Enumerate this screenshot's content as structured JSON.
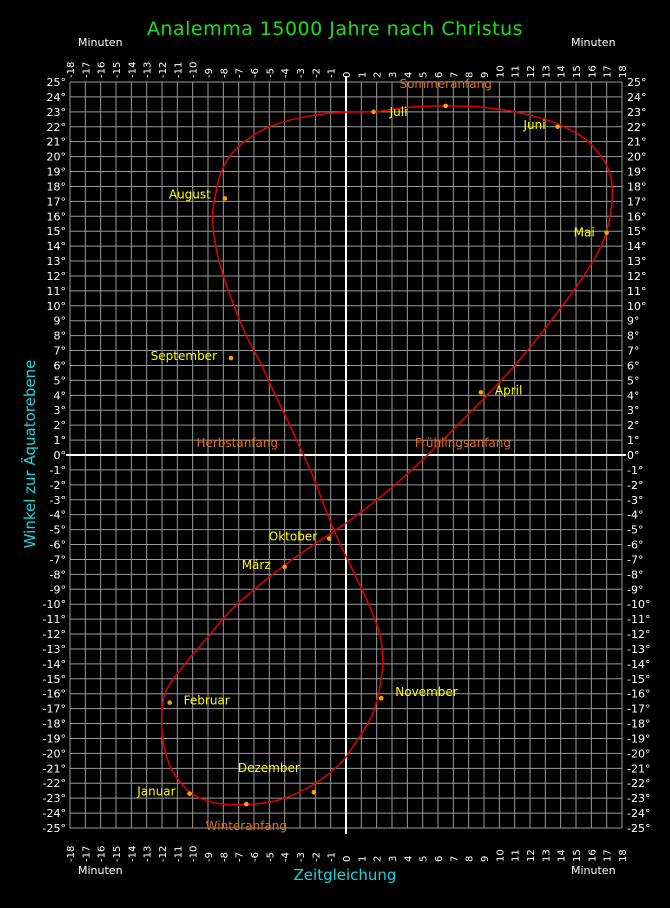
{
  "chart_data": {
    "type": "line",
    "title": "Analemma  15000 Jahre nach Christus",
    "xlabel": "Zeitgleichung",
    "ylabel": "Winkel zur Äquatorebene",
    "x_unit_label": "Minuten",
    "xlim": [
      -18,
      18
    ],
    "ylim": [
      -25,
      25
    ],
    "grid": true,
    "xticks": [
      -18,
      -17,
      -16,
      -15,
      -14,
      -13,
      -12,
      -11,
      -10,
      -9,
      -8,
      -7,
      -6,
      -5,
      -4,
      -3,
      -2,
      -1,
      0,
      1,
      2,
      3,
      4,
      5,
      6,
      7,
      8,
      9,
      10,
      11,
      12,
      13,
      14,
      15,
      16,
      17,
      18
    ],
    "yticks": [
      "25°",
      "24°",
      "23°",
      "22°",
      "21°",
      "20°",
      "19°",
      "18°",
      "17°",
      "16°",
      "15°",
      "14°",
      "13°",
      "12°",
      "11°",
      "10°",
      "9°",
      "8°",
      "7°",
      "6°",
      "5°",
      "4°",
      "3°",
      "2°",
      "1°",
      "0°",
      "-1°",
      "-2°",
      "-3°",
      "-4°",
      "-5°",
      "-6°",
      "-7°",
      "-8°",
      "-9°",
      "-10°",
      "-11°",
      "-12°",
      "-13°",
      "-14°",
      "-15°",
      "-16°",
      "-17°",
      "-18°",
      "-19°",
      "-20°",
      "-21°",
      "-22°",
      "-23°",
      "-24°",
      "-25°"
    ],
    "series": [
      {
        "x": [
          2.0,
          4.0,
          6.5,
          9.0,
          11.5,
          14.0,
          16.0,
          17.3,
          17.0,
          15.5,
          13.0,
          11.0,
          9.0,
          6.5,
          4.5,
          2.5,
          0.5,
          -1.5,
          -3.5,
          -5.5,
          -7.5,
          -9.0,
          -10.5,
          -11.8,
          -12.0,
          -11.5,
          -10.5,
          -9.5,
          -8.0,
          -6.0,
          -4.0,
          -2.0,
          -0.3,
          0.8,
          1.8,
          2.3,
          2.4,
          2.2,
          1.6,
          0.8,
          0.0,
          -0.8,
          -1.5,
          -2.2,
          -3.0,
          -3.8,
          -4.6,
          -5.5,
          -6.5,
          -7.3,
          -8.0,
          -8.5,
          -8.7,
          -8.5,
          -8.2,
          -7.6,
          -6.5,
          -5.0,
          -3.0,
          -0.5,
          2.0
        ],
        "y": [
          23.0,
          23.3,
          23.4,
          23.3,
          22.9,
          22.1,
          20.8,
          18.5,
          15.0,
          12.0,
          8.5,
          6.0,
          3.8,
          1.2,
          -0.8,
          -2.6,
          -4.2,
          -5.6,
          -7.0,
          -8.6,
          -10.4,
          -12.2,
          -14.0,
          -16.0,
          -18.5,
          -20.8,
          -22.3,
          -23.0,
          -23.4,
          -23.4,
          -23.0,
          -22.0,
          -20.6,
          -19.0,
          -17.2,
          -15.0,
          -13.5,
          -12.0,
          -10.3,
          -8.5,
          -6.8,
          -5.0,
          -3.2,
          -1.3,
          0.5,
          2.3,
          4.0,
          6.0,
          8.0,
          10.0,
          12.0,
          14.0,
          16.0,
          17.5,
          18.8,
          20.0,
          21.1,
          22.0,
          22.6,
          22.95,
          23.0
        ]
      }
    ],
    "month_points": [
      {
        "name": "Juli",
        "x": 1.8,
        "y": 23.0
      },
      {
        "name": "Juni",
        "x": 13.8,
        "y": 22.0
      },
      {
        "name": "Mai",
        "x": 17.0,
        "y": 14.9
      },
      {
        "name": "April",
        "x": 8.8,
        "y": 4.2
      },
      {
        "name": "März",
        "x": -4.0,
        "y": -7.5
      },
      {
        "name": "Februar",
        "x": -11.5,
        "y": -16.6
      },
      {
        "name": "Januar",
        "x": -10.2,
        "y": -22.7
      },
      {
        "name": "Dezember",
        "x": -2.1,
        "y": -22.6
      },
      {
        "name": "November",
        "x": 2.3,
        "y": -16.3
      },
      {
        "name": "Oktober",
        "x": -1.1,
        "y": -5.6
      },
      {
        "name": "September",
        "x": -7.5,
        "y": 6.5
      },
      {
        "name": "August",
        "x": -7.9,
        "y": 17.2
      }
    ],
    "event_points": [
      {
        "name": "Sommeranfang",
        "x": 6.5,
        "y": 23.4
      },
      {
        "name": "Winteranfang",
        "x": -6.5,
        "y": -23.4
      },
      {
        "name": "Frühlingsanfang",
        "x": 4.3,
        "y": 0.0
      },
      {
        "name": "Herbstanfang",
        "x": -4.1,
        "y": 0.0
      }
    ],
    "colors": {
      "curve": "#e00000",
      "grid": "#9a9a9a",
      "axes": "#ffffff",
      "ticks": "#ffffff",
      "month_labels": "#ffff00",
      "event_labels": "#e07020",
      "title": "#18e018",
      "axis_titles": "#19d6dc",
      "points": "#ffa000"
    }
  }
}
